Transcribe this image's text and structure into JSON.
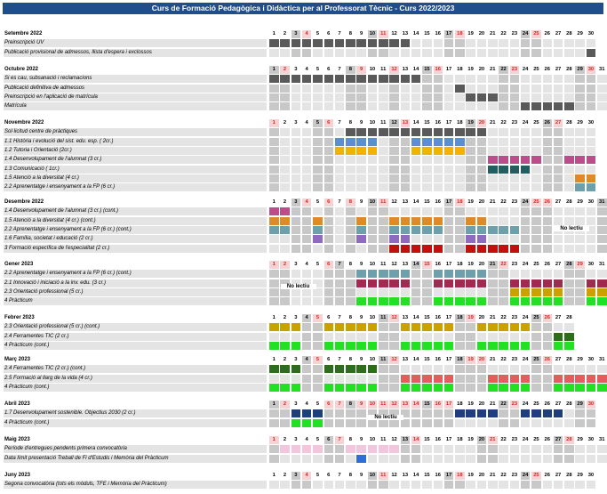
{
  "title": "Curs de Formació Pedagògica i Didàctica per al Professorat Tècnic - Curs 2022/2023",
  "colors": {
    "title_bg": "#1e4e8c",
    "weekend": "#c8c8c8",
    "holiday_text": "#e02020",
    "row_bg": "#e4e4e4",
    "dark": "#5a5a5a",
    "darkblue": "#1f3e7a",
    "blue": "#5b8fd4",
    "yellow": "#f0b400",
    "magenta": "#bb4d8a",
    "teal": "#1f5f5f",
    "orange": "#df8a2a",
    "steel": "#6ea0ac",
    "purple": "#8f6bbf",
    "red": "#c01010",
    "maroon": "#9e2b50",
    "gold": "#c9a200",
    "green": "#22e022",
    "dgreen": "#2d6e1a",
    "salmon": "#e35d5d",
    "pink": "#f2c6dc",
    "brightblue": "#2d6fd6"
  },
  "no_lectiu_label": "No lectiu",
  "months": [
    {
      "name": "Setembre 2022",
      "days": 30,
      "weekends": [
        3,
        4,
        10,
        11,
        17,
        18,
        24,
        25
      ],
      "holidays": [
        4,
        11,
        18,
        25
      ],
      "gray": [
        3,
        10,
        17,
        24
      ],
      "rows": [
        {
          "label": "Preinscripció UV",
          "segments": [
            [
              1,
              13,
              "dark"
            ]
          ]
        },
        {
          "label": "Publicació provisional de admessos, llista d'espera i exclossos",
          "segments": [
            [
              30,
              30,
              "dark"
            ]
          ]
        }
      ]
    },
    {
      "name": "Octubre 2022",
      "days": 31,
      "weekends": [
        1,
        2,
        8,
        9,
        12,
        15,
        16,
        22,
        23,
        29,
        30
      ],
      "holidays": [
        2,
        9,
        12,
        16,
        23,
        30
      ],
      "gray": [
        1,
        8,
        15,
        22,
        29
      ],
      "rows": [
        {
          "label": "Si es cau, subsanació i reclamacions",
          "segments": [
            [
              1,
              14,
              "dark"
            ]
          ]
        },
        {
          "label": "Publicació definitiva de admessos",
          "segments": [
            [
              18,
              18,
              "dark"
            ]
          ]
        },
        {
          "label": "Preinscripció en l'aplicació de matrícula",
          "segments": [
            [
              19,
              21,
              "dark"
            ]
          ]
        },
        {
          "label": "Matrícula",
          "segments": [
            [
              24,
              28,
              "dark"
            ]
          ]
        }
      ]
    },
    {
      "name": "Novembre 2022",
      "days": 30,
      "weekends": [
        1,
        5,
        6,
        12,
        13,
        19,
        20,
        26,
        27
      ],
      "holidays": [
        1,
        6,
        13,
        20,
        27
      ],
      "gray": [
        5,
        12,
        19,
        26
      ],
      "rows": [
        {
          "label": "Sol·licitud centre de pràctiques",
          "segments": [
            [
              8,
              20,
              "dark"
            ]
          ]
        },
        {
          "label": "1.1 Història i evolució del sist. edu. esp. ( 2cr.)",
          "segments": [
            [
              7,
              10,
              "blue"
            ],
            [
              14,
              18,
              "blue"
            ]
          ]
        },
        {
          "label": "1.2 Tutoria i Orientació (2cr.)",
          "segments": [
            [
              7,
              10,
              "yellow"
            ],
            [
              14,
              18,
              "yellow"
            ]
          ]
        },
        {
          "label": "1.4 Desenvolupament de l'alumnat (3 cr.)",
          "segments": [
            [
              21,
              25,
              "magenta"
            ],
            [
              28,
              30,
              "magenta"
            ]
          ]
        },
        {
          "label": "1.3 Comunicació ( 1cr.)",
          "segments": [
            [
              21,
              24,
              "teal"
            ]
          ]
        },
        {
          "label": "1.5 Atenció a la diversitat (4 cr.)",
          "segments": [
            [
              29,
              30,
              "orange"
            ]
          ]
        },
        {
          "label": "2.2 Aprenentatge i ensenyament a la FP (6 cr.)",
          "segments": [
            [
              29,
              30,
              "steel"
            ]
          ]
        }
      ]
    },
    {
      "name": "Desembre 2022",
      "days": 31,
      "weekends": [
        3,
        4,
        6,
        8,
        10,
        11,
        17,
        18,
        24,
        25,
        26,
        31
      ],
      "holidays": [
        4,
        6,
        8,
        11,
        18,
        25,
        26
      ],
      "gray": [
        3,
        10,
        17,
        24,
        31
      ],
      "no_lectiu_at": 28,
      "rows": [
        {
          "label": "1.4 Desenvolupament de l'alumnat (3 cr.) (cont.)",
          "segments": [
            [
              1,
              2,
              "magenta"
            ]
          ]
        },
        {
          "label": "1.5 Atenció a la diversitat (4 cr.) (cont.)",
          "segments": [
            [
              1,
              2,
              "orange"
            ],
            [
              5,
              5,
              "orange"
            ],
            [
              9,
              9,
              "orange"
            ],
            [
              12,
              16,
              "orange"
            ],
            [
              19,
              20,
              "orange"
            ]
          ]
        },
        {
          "label": "2.2 Aprenentatge i ensenyament a la FP (6 cr.) (cont.)",
          "segments": [
            [
              1,
              2,
              "steel"
            ],
            [
              5,
              5,
              "steel"
            ],
            [
              9,
              9,
              "steel"
            ],
            [
              12,
              16,
              "steel"
            ],
            [
              19,
              23,
              "steel"
            ]
          ]
        },
        {
          "label": "1.6 Família, societat i educació (2 cr.)",
          "segments": [
            [
              5,
              5,
              "purple"
            ],
            [
              9,
              9,
              "purple"
            ],
            [
              12,
              13,
              "purple"
            ],
            [
              19,
              20,
              "purple"
            ]
          ]
        },
        {
          "label": "3 Formació específica de l'especialitat (2 cr.)",
          "segments": [
            [
              12,
              16,
              "red"
            ],
            [
              19,
              23,
              "red"
            ]
          ]
        }
      ]
    },
    {
      "name": "Gener 2023",
      "days": 31,
      "weekends": [
        1,
        2,
        6,
        7,
        8,
        14,
        15,
        21,
        22,
        28,
        29
      ],
      "holidays": [
        1,
        2,
        6,
        15,
        22,
        29
      ],
      "gray": [
        7,
        14,
        21,
        28
      ],
      "no_lectiu_at": 3,
      "rows": [
        {
          "label": "2.2 Aprenentatge i ensenyament a la FP (6 cr.) (cont.)",
          "segments": [
            [
              9,
              13,
              "steel"
            ],
            [
              16,
              20,
              "steel"
            ]
          ]
        },
        {
          "label": "2.1 Innovació i iniciació a la inv. edu. (3 cr.)",
          "segments": [
            [
              9,
              13,
              "maroon"
            ],
            [
              16,
              20,
              "maroon"
            ],
            [
              23,
              27,
              "maroon"
            ],
            [
              30,
              31,
              "maroon"
            ]
          ]
        },
        {
          "label": "2.3 Orientació professional (5 cr.)",
          "segments": [
            [
              23,
              27,
              "gold"
            ],
            [
              30,
              31,
              "gold"
            ]
          ]
        },
        {
          "label": "4 Pràcticum",
          "segments": [
            [
              9,
              13,
              "green"
            ],
            [
              16,
              20,
              "green"
            ],
            [
              23,
              27,
              "green"
            ],
            [
              30,
              31,
              "green"
            ]
          ]
        }
      ]
    },
    {
      "name": "Febrer 2023",
      "days": 28,
      "weekends": [
        4,
        5,
        11,
        12,
        18,
        19,
        25,
        26
      ],
      "holidays": [
        5,
        12,
        19,
        26
      ],
      "gray": [
        4,
        11,
        18,
        25
      ],
      "rows": [
        {
          "label": "2.3 Orientació professional (5 cr.) (cont.)",
          "segments": [
            [
              1,
              3,
              "gold"
            ],
            [
              6,
              10,
              "gold"
            ],
            [
              13,
              17,
              "gold"
            ],
            [
              20,
              24,
              "gold"
            ]
          ]
        },
        {
          "label": "2.4 Ferramentes TIC (2 cr.)",
          "segments": [
            [
              27,
              28,
              "dgreen"
            ]
          ]
        },
        {
          "label": "4 Pràcticum (cont.)",
          "segments": [
            [
              1,
              3,
              "green"
            ],
            [
              6,
              10,
              "green"
            ],
            [
              13,
              17,
              "green"
            ],
            [
              20,
              24,
              "green"
            ],
            [
              27,
              28,
              "green"
            ]
          ]
        }
      ]
    },
    {
      "name": "Març 2023",
      "days": 31,
      "weekends": [
        4,
        5,
        11,
        12,
        18,
        19,
        20,
        25,
        26
      ],
      "holidays": [
        5,
        12,
        19,
        20,
        26
      ],
      "gray": [
        4,
        11,
        18,
        25
      ],
      "rows": [
        {
          "label": "2.4 Ferramentes TIC (2 cr.) (cont.)",
          "segments": [
            [
              1,
              3,
              "dgreen"
            ],
            [
              6,
              10,
              "dgreen"
            ]
          ]
        },
        {
          "label": "2.5 Formació al llarg de la vida (4 cr.)",
          "segments": [
            [
              13,
              17,
              "salmon"
            ],
            [
              21,
              24,
              "salmon"
            ],
            [
              27,
              31,
              "salmon"
            ]
          ]
        },
        {
          "label": "4 Pràcticum (cont.)",
          "segments": [
            [
              1,
              3,
              "green"
            ],
            [
              6,
              10,
              "green"
            ],
            [
              13,
              17,
              "green"
            ],
            [
              21,
              24,
              "green"
            ],
            [
              27,
              31,
              "green"
            ]
          ]
        }
      ]
    },
    {
      "name": "Abril 2023",
      "days": 30,
      "weekends": [
        1,
        2,
        6,
        7,
        8,
        9,
        10,
        11,
        12,
        13,
        14,
        15,
        16,
        17,
        22,
        23,
        29,
        30
      ],
      "holidays": [
        2,
        6,
        7,
        9,
        10,
        11,
        12,
        13,
        14,
        16,
        17,
        23,
        30
      ],
      "gray": [
        1,
        8,
        15,
        22,
        29
      ],
      "no_lectiu_at": 11,
      "rows": [
        {
          "label": "1.7 Desenvolupament sostenible. Objectius 2030 (2 cr.)",
          "segments": [
            [
              3,
              5,
              "darkblue"
            ],
            [
              18,
              21,
              "darkblue"
            ],
            [
              24,
              27,
              "darkblue"
            ]
          ]
        },
        {
          "label": "4 Pràcticum (cont.)",
          "segments": [
            [
              3,
              5,
              "green"
            ]
          ]
        }
      ]
    },
    {
      "name": "Maig 2023",
      "days": 31,
      "weekends": [
        1,
        6,
        7,
        13,
        14,
        20,
        21,
        27,
        28
      ],
      "holidays": [
        1,
        7,
        14,
        21,
        28
      ],
      "gray": [
        6,
        13,
        20,
        27
      ],
      "rows": [
        {
          "label": "Període d'entregues pendents primera convocatòria",
          "segments": [
            [
              2,
              12,
              "pink"
            ]
          ]
        },
        {
          "label": "Data límit presentació Treball de Fi d'Estudis i Memòria del Pràcticum",
          "segments": [
            [
              9,
              9,
              "brightblue"
            ]
          ]
        }
      ]
    },
    {
      "name": "Juny 2023",
      "days": 30,
      "weekends": [
        3,
        4,
        10,
        11,
        17,
        18,
        24,
        25
      ],
      "holidays": [
        4,
        11,
        18,
        25
      ],
      "gray": [
        3,
        10,
        17,
        24
      ],
      "rows": [
        {
          "label": "Segona convocatòria (tots els mòduls, TFE i Memòria del Pràcticum)",
          "segments": []
        }
      ]
    }
  ]
}
